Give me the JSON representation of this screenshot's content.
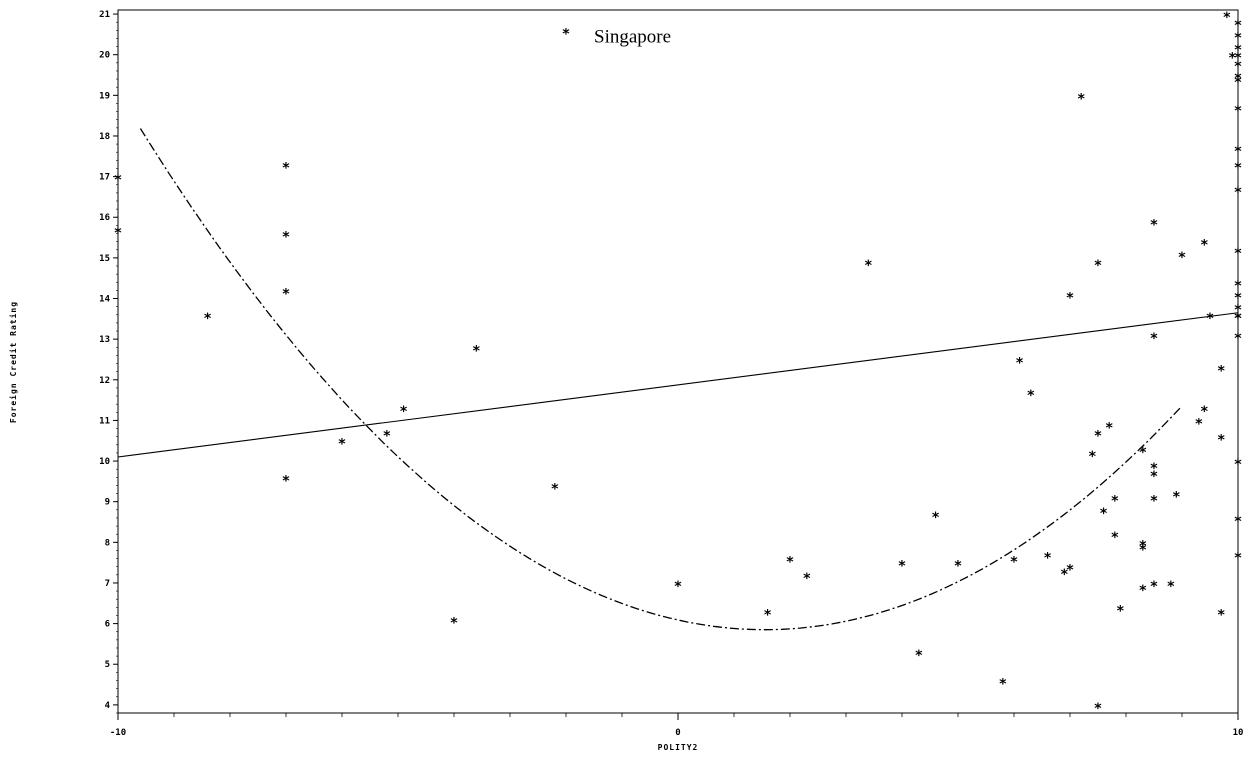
{
  "chart_data": {
    "type": "scatter",
    "xlabel": "POLITY2",
    "ylabel": "Foreign Credit Rating",
    "xlim": [
      -10,
      10
    ],
    "ylim": [
      3.8,
      21.1
    ],
    "x_ticks": [
      -10,
      0,
      10
    ],
    "y_ticks": [
      4,
      5,
      6,
      7,
      8,
      9,
      10,
      11,
      12,
      13,
      14,
      15,
      16,
      17,
      18,
      19,
      20,
      21
    ],
    "grid": false,
    "legend": "none",
    "annotation": {
      "text": "Singapore",
      "x": -1.5,
      "y": 20.3
    },
    "points": [
      [
        -10,
        17.0
      ],
      [
        -10,
        15.7
      ],
      [
        -8.4,
        13.6
      ],
      [
        -7,
        17.3
      ],
      [
        -7,
        15.6
      ],
      [
        -7,
        14.2
      ],
      [
        -7,
        9.6
      ],
      [
        -6,
        10.5
      ],
      [
        -5.2,
        10.7
      ],
      [
        -4.9,
        11.3
      ],
      [
        -4,
        6.1
      ],
      [
        -3.6,
        12.8
      ],
      [
        -2.2,
        9.4
      ],
      [
        -2,
        20.6
      ],
      [
        0,
        7.0
      ],
      [
        1.6,
        6.3
      ],
      [
        2,
        7.6
      ],
      [
        2.3,
        7.2
      ],
      [
        3.4,
        14.9
      ],
      [
        4,
        7.5
      ],
      [
        4.3,
        5.3
      ],
      [
        4.6,
        8.7
      ],
      [
        5,
        7.5
      ],
      [
        5.8,
        4.6
      ],
      [
        6,
        7.6
      ],
      [
        6.1,
        12.5
      ],
      [
        6.3,
        11.7
      ],
      [
        6.6,
        7.7
      ],
      [
        6.9,
        7.3
      ],
      [
        7,
        7.4
      ],
      [
        7,
        14.1
      ],
      [
        7.2,
        19.0
      ],
      [
        7.4,
        10.2
      ],
      [
        7.5,
        10.7
      ],
      [
        7.5,
        14.9
      ],
      [
        7.5,
        4.0
      ],
      [
        7.6,
        8.8
      ],
      [
        7.7,
        10.9
      ],
      [
        7.8,
        9.1
      ],
      [
        7.8,
        8.2
      ],
      [
        7.9,
        6.4
      ],
      [
        8.3,
        10.3
      ],
      [
        8.3,
        8.0
      ],
      [
        8.3,
        7.9
      ],
      [
        8.3,
        6.9
      ],
      [
        8.5,
        9.9
      ],
      [
        8.5,
        9.7
      ],
      [
        8.5,
        9.1
      ],
      [
        8.5,
        7.0
      ],
      [
        8.5,
        13.1
      ],
      [
        8.5,
        15.9
      ],
      [
        8.8,
        7.0
      ],
      [
        8.9,
        9.2
      ],
      [
        9,
        15.1
      ],
      [
        9.3,
        11.0
      ],
      [
        9.4,
        15.4
      ],
      [
        9.4,
        11.3
      ],
      [
        9.5,
        13.6
      ],
      [
        9.7,
        12.3
      ],
      [
        9.7,
        10.6
      ],
      [
        9.7,
        6.3
      ],
      [
        9.8,
        21.0
      ],
      [
        10,
        15.2
      ],
      [
        10,
        14.4
      ],
      [
        10,
        13.6
      ],
      [
        9.9,
        20.0
      ],
      [
        10,
        20.8
      ],
      [
        10,
        20.5
      ],
      [
        10,
        20.2
      ],
      [
        10,
        20.0
      ],
      [
        10,
        19.8
      ],
      [
        10,
        19.5
      ],
      [
        10,
        19.4
      ],
      [
        10,
        18.7
      ],
      [
        10,
        17.7
      ],
      [
        10,
        17.3
      ],
      [
        10,
        16.7
      ],
      [
        10,
        14.1
      ],
      [
        10,
        13.8
      ],
      [
        10,
        13.6
      ],
      [
        10,
        13.1
      ],
      [
        10,
        10.0
      ],
      [
        10,
        8.6
      ],
      [
        10,
        7.7
      ]
    ],
    "series": [
      {
        "type": "line",
        "style": "solid",
        "x": [
          -10,
          10
        ],
        "y": [
          10.1,
          13.65
        ]
      },
      {
        "type": "quadratic",
        "style": "dash-dot",
        "x_range": [
          -9.6,
          9
        ],
        "vertex": [
          1.55,
          5.85
        ],
        "a": 0.0992
      }
    ]
  }
}
